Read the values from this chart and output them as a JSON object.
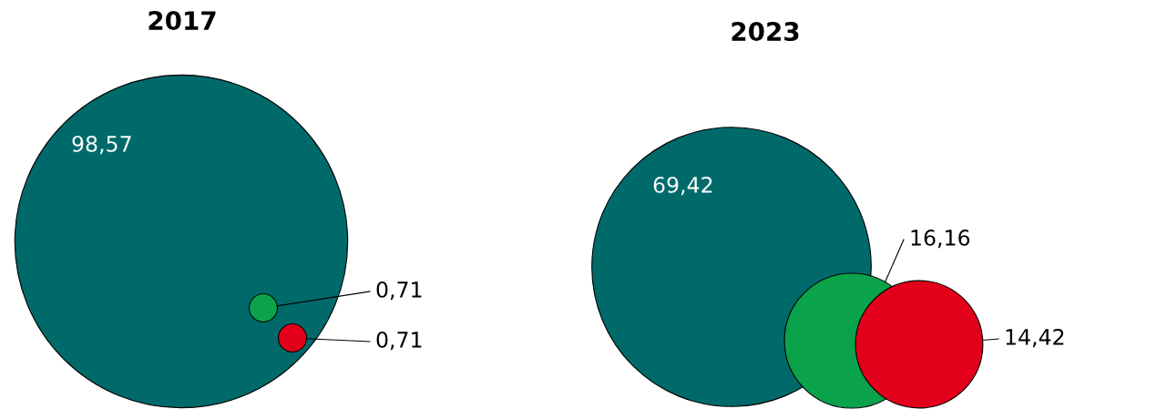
{
  "chart_data": [
    {
      "type": "other",
      "title": "2017",
      "categories": [
        null,
        null,
        null
      ],
      "values": [
        98.57,
        0.71,
        0.71
      ],
      "value_labels": [
        "98,57",
        "0,71",
        "0,71"
      ],
      "colors": [
        "#006a6b",
        "#0aa24a",
        "#e3001b"
      ]
    },
    {
      "type": "other",
      "title": "2023",
      "categories": [
        null,
        null,
        null
      ],
      "values": [
        69.42,
        16.16,
        14.42
      ],
      "value_labels": [
        "69,42",
        "16,16",
        "14,42"
      ],
      "colors": [
        "#006a6b",
        "#0aa24a",
        "#e3001b"
      ]
    }
  ]
}
